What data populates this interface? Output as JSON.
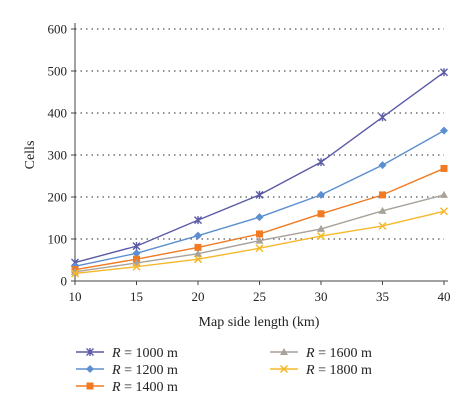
{
  "chart_data": {
    "type": "line",
    "xlabel": "Map side length (km)",
    "ylabel": "Cells",
    "x": [
      10,
      15,
      20,
      25,
      30,
      35,
      40
    ],
    "xlim": [
      10,
      40
    ],
    "ylim": [
      0,
      600
    ],
    "xticks": [
      "10",
      "15",
      "20",
      "25",
      "30",
      "35",
      "40"
    ],
    "yticks": [
      "0",
      "100",
      "200",
      "300",
      "400",
      "500",
      "600"
    ],
    "grid": "horizontal dotted",
    "legend_position": "bottom",
    "series": [
      {
        "name_var": "R",
        "name_rest": " = 1000 m",
        "color": "#5a5aa6",
        "marker": "x-star",
        "values": [
          44,
          83,
          145,
          205,
          283,
          390,
          497
        ]
      },
      {
        "name_var": "R",
        "name_rest": " = 1200 m",
        "color": "#5b8fcf",
        "marker": "diamond",
        "values": [
          35,
          66,
          108,
          152,
          205,
          276,
          358
        ]
      },
      {
        "name_var": "R",
        "name_rest": " = 1400 m",
        "color": "#f07b22",
        "marker": "square",
        "values": [
          27,
          52,
          80,
          112,
          160,
          205,
          268
        ]
      },
      {
        "name_var": "R",
        "name_rest": " = 1600 m",
        "color": "#a8a29a",
        "marker": "triangle",
        "values": [
          22,
          43,
          65,
          96,
          124,
          167,
          205
        ]
      },
      {
        "name_var": "R",
        "name_rest": " = 1800 m",
        "color": "#f5b82b",
        "marker": "x",
        "values": [
          18,
          34,
          52,
          78,
          107,
          131,
          166
        ]
      }
    ]
  }
}
